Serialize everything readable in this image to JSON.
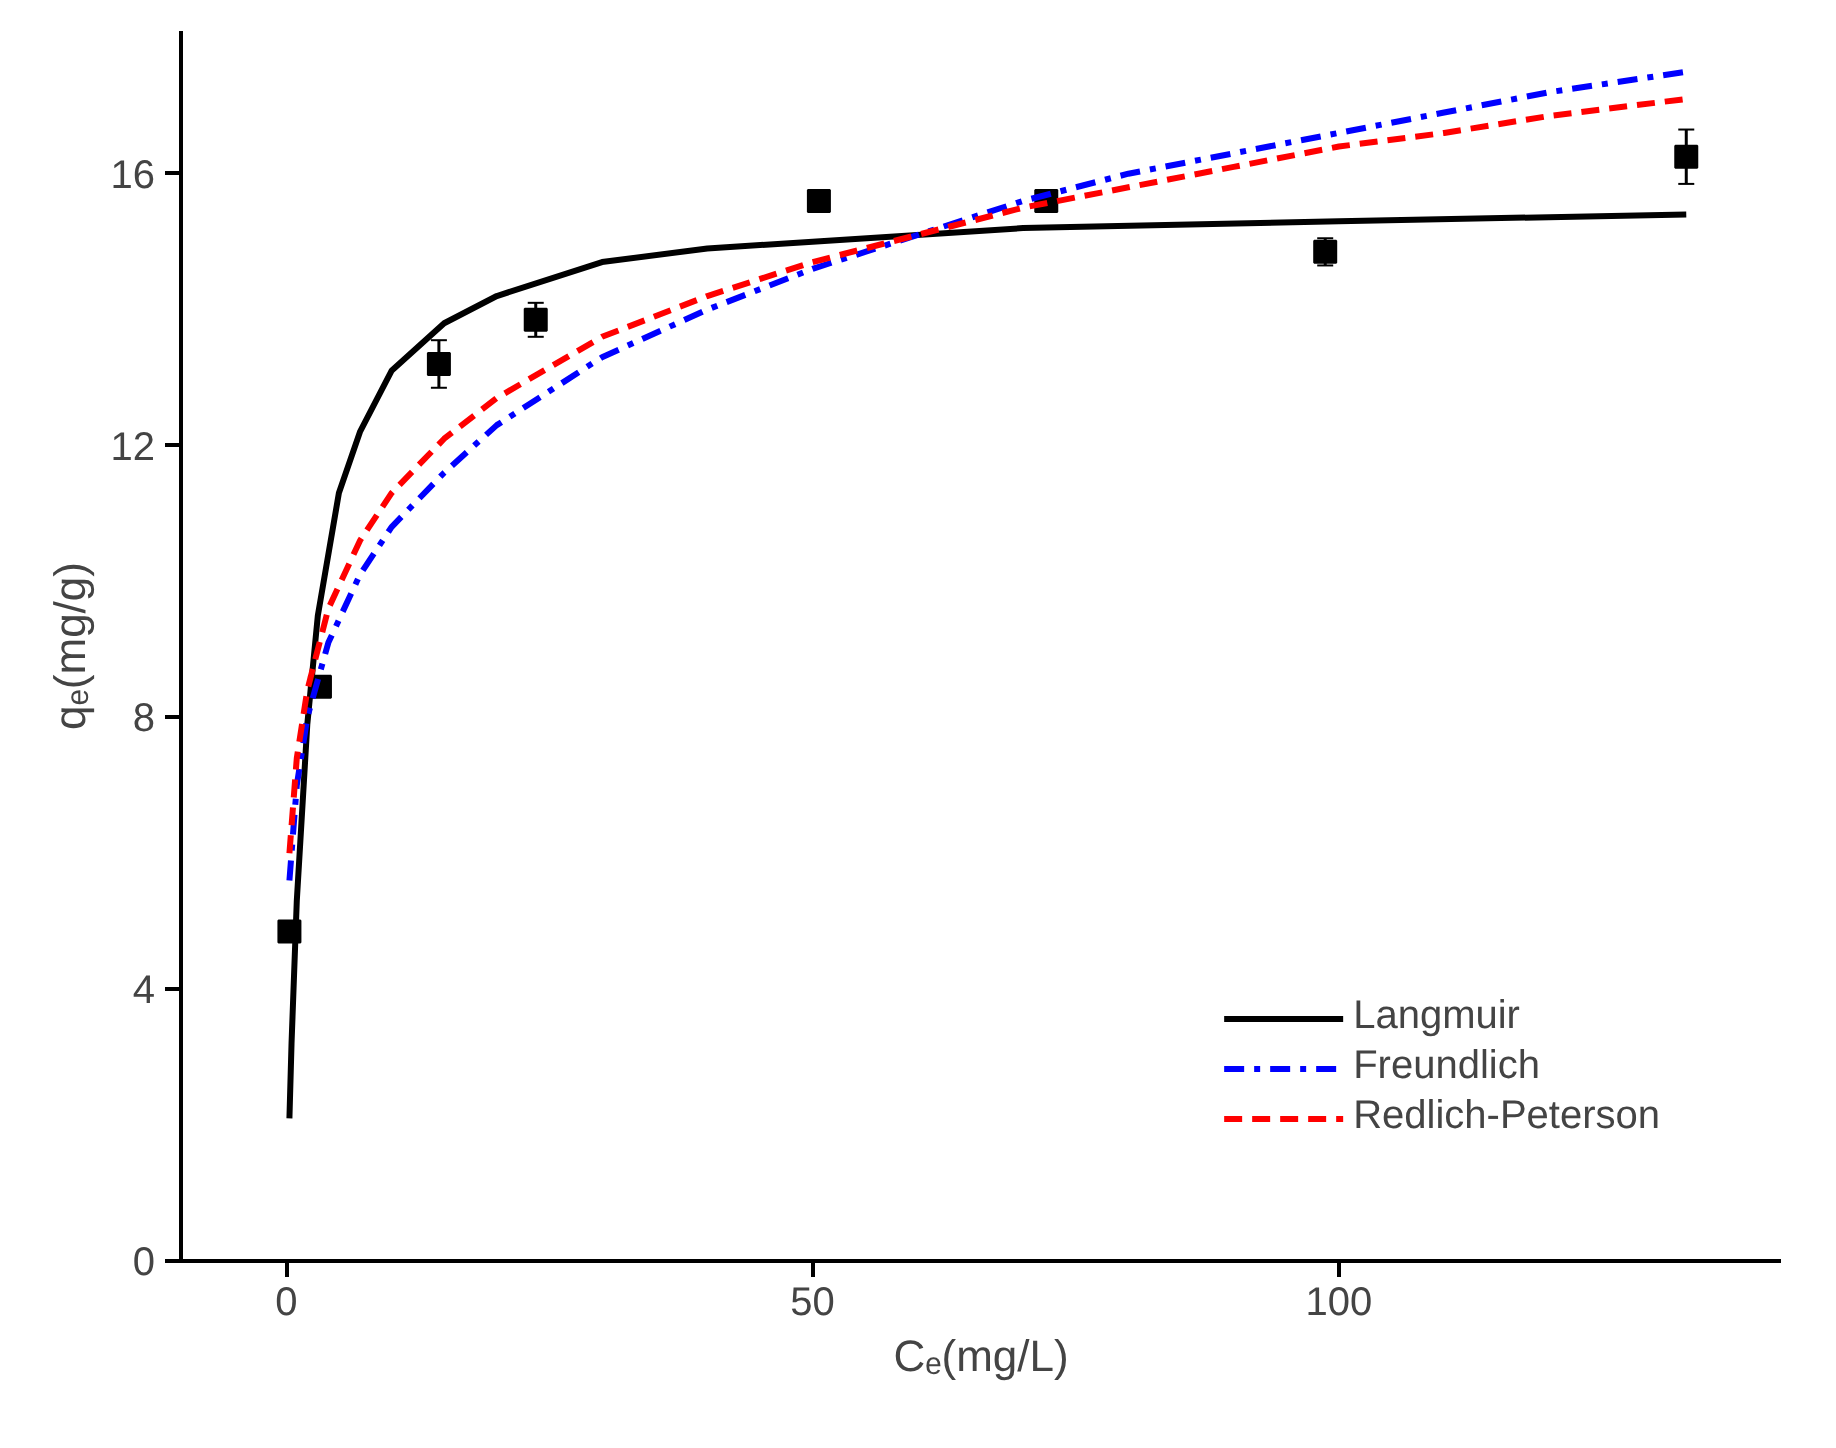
{
  "chart_data": {
    "type": "line",
    "xlabel": "Cₑ(mg/L)",
    "ylabel": "qₑ(mg/g)",
    "xlim": [
      -10,
      142
    ],
    "ylim": [
      0,
      18.1
    ],
    "xticks": [
      0,
      50,
      100
    ],
    "yticks": [
      0,
      4,
      8,
      12,
      16
    ],
    "grid": false,
    "legend": "bottom right",
    "series": [
      {
        "type": "scatter",
        "marker": "square",
        "color": "#000000",
        "x": [
          0.3,
          3.2,
          14.5,
          23.7,
          50.6,
          72.2,
          98.7,
          133
        ],
        "values": [
          4.85,
          8.45,
          13.2,
          13.85,
          15.6,
          15.6,
          14.85,
          16.25
        ],
        "errors": [
          null,
          null,
          0.35,
          0.25,
          0.1,
          0.08,
          0.2,
          0.4
        ]
      },
      {
        "name": "Langmuir",
        "color": "#000000",
        "line_style": "solid",
        "x": [
          0.3,
          0.5,
          1,
          2,
          3,
          5,
          7,
          10,
          15,
          20,
          30,
          40,
          50,
          70,
          100,
          133
        ],
        "values": [
          2.1,
          3.2,
          5.3,
          7.9,
          9.5,
          11.3,
          12.2,
          13.1,
          13.8,
          14.2,
          14.7,
          14.9,
          15.0,
          15.2,
          15.3,
          15.4
        ]
      },
      {
        "name": "Freundlich",
        "color": "#0000ff",
        "line_style": "dashdot",
        "x": [
          0.3,
          1,
          2,
          4,
          7,
          10,
          15,
          20,
          30,
          40,
          50,
          60,
          70,
          80,
          90,
          100,
          110,
          120,
          133
        ],
        "values": [
          5.6,
          7.0,
          8.0,
          9.1,
          10.1,
          10.8,
          11.6,
          12.3,
          13.3,
          14.0,
          14.6,
          15.1,
          15.6,
          16.0,
          16.3,
          16.6,
          16.9,
          17.2,
          17.5
        ]
      },
      {
        "name": "Redlich-Peterson",
        "color": "#ff0000",
        "line_style": "dashed",
        "x": [
          0.3,
          1,
          2,
          4,
          7,
          10,
          15,
          20,
          30,
          40,
          50,
          60,
          70,
          80,
          90,
          100,
          110,
          120,
          133
        ],
        "values": [
          6.0,
          7.4,
          8.4,
          9.6,
          10.6,
          11.3,
          12.1,
          12.7,
          13.6,
          14.2,
          14.7,
          15.1,
          15.5,
          15.8,
          16.1,
          16.4,
          16.6,
          16.85,
          17.1
        ]
      }
    ]
  }
}
